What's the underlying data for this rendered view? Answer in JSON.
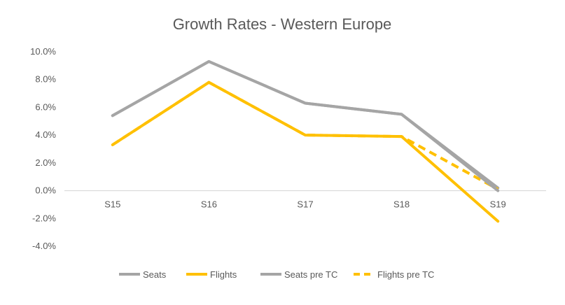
{
  "chart_data": {
    "type": "line",
    "title": "Growth Rates - Western Europe",
    "categories": [
      "S15",
      "S16",
      "S17",
      "S18",
      "S19"
    ],
    "ylim": [
      -4.0,
      10.0
    ],
    "yticks": [
      10.0,
      8.0,
      6.0,
      4.0,
      2.0,
      0.0,
      -2.0,
      -4.0
    ],
    "ytick_labels": [
      "10.0%",
      "8.0%",
      "6.0%",
      "4.0%",
      "2.0%",
      "0.0%",
      "-2.0%",
      "-4.0%"
    ],
    "xlabel": "",
    "ylabel": "",
    "grid": false,
    "legend_position": "bottom",
    "colors": {
      "seats": "#A5A5A5",
      "flights": "#FFC000",
      "axis": "#D9D9D9",
      "text": "#595959"
    },
    "series": [
      {
        "name": "Seats",
        "style": "solid",
        "color": "#A5A5A5",
        "values": [
          5.4,
          9.3,
          6.3,
          5.5,
          0.0
        ]
      },
      {
        "name": "Flights",
        "style": "solid",
        "color": "#FFC000",
        "values": [
          3.3,
          7.8,
          4.0,
          3.9,
          -2.2
        ]
      },
      {
        "name": "Seats pre TC",
        "style": "solid",
        "color": "#A5A5A5",
        "values": [
          5.4,
          9.3,
          6.3,
          5.5,
          0.2
        ]
      },
      {
        "name": "Flights pre TC",
        "style": "dashed",
        "color": "#FFC000",
        "values": [
          3.3,
          7.8,
          4.0,
          3.9,
          0.1
        ]
      }
    ]
  }
}
